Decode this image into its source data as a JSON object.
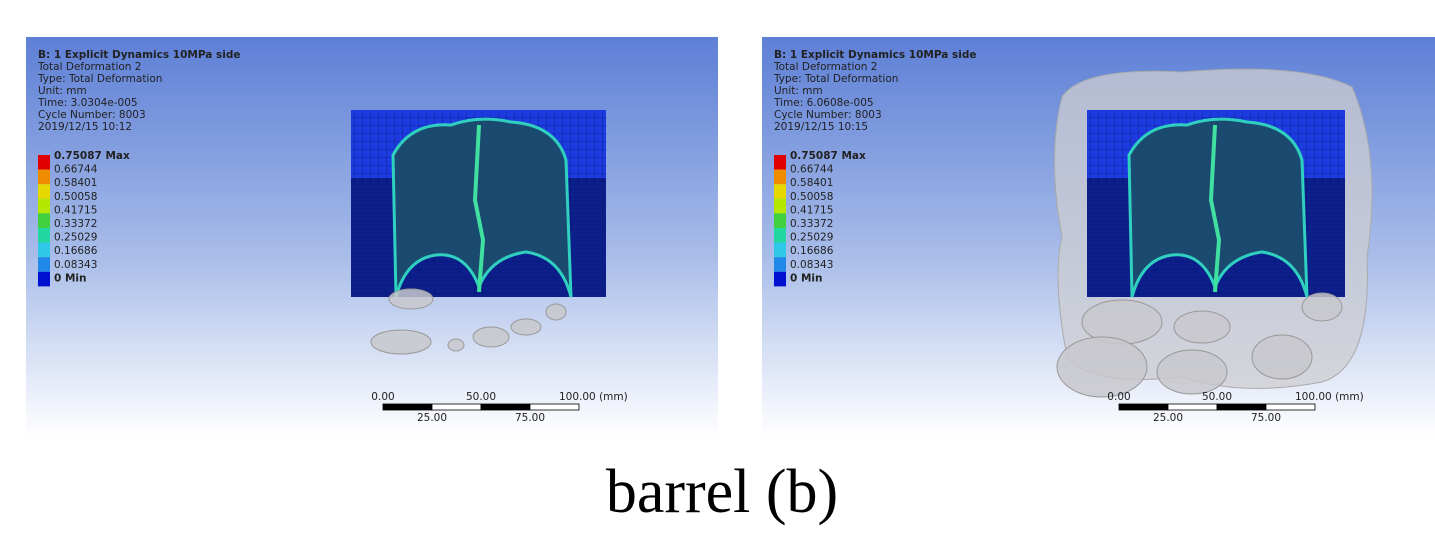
{
  "panels": [
    {
      "header": [
        "B: 1 Explicit Dynamics 10MPa side",
        "Total Deformation 2",
        "Type: Total Deformation",
        "Unit: mm",
        "Time: 3.0304e-005",
        "Cycle Number: 8003",
        "2019/12/15 10:12"
      ],
      "legend": [
        "0.75087 Max",
        "0.66744",
        "0.58401",
        "0.50058",
        "0.41715",
        "0.33372",
        "0.25029",
        "0.16686",
        "0.08343",
        "0 Min"
      ],
      "scale": {
        "top": [
          "0.00",
          "50.00",
          "100.00 (mm)"
        ],
        "bottom": [
          "25.00",
          "75.00"
        ]
      }
    },
    {
      "header": [
        "B: 1 Explicit Dynamics 10MPa side",
        "Total Deformation 2",
        "Type: Total Deformation",
        "Unit: mm",
        "Time: 6.0608e-005",
        "Cycle Number: 8003",
        "2019/12/15 10:15"
      ],
      "legend": [
        "0.75087 Max",
        "0.66744",
        "0.58401",
        "0.50058",
        "0.41715",
        "0.33372",
        "0.25029",
        "0.16686",
        "0.08343",
        "0 Min"
      ],
      "scale": {
        "top": [
          "0.00",
          "50.00",
          "100.00 (mm)"
        ],
        "bottom": [
          "25.00",
          "75.00"
        ]
      }
    }
  ],
  "caption": "barrel (b)"
}
